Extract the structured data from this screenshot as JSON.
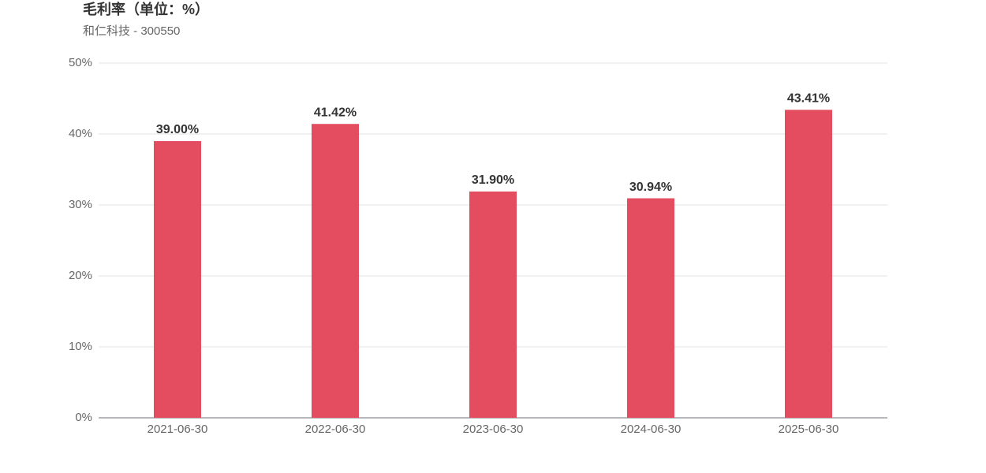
{
  "chart_data": {
    "type": "bar",
    "title": "毛利率（单位：%）",
    "subtitle": "和仁科技 - 300550",
    "categories": [
      "2021-06-30",
      "2022-06-30",
      "2023-06-30",
      "2024-06-30",
      "2025-06-30"
    ],
    "values": [
      39.0,
      41.42,
      31.9,
      30.94,
      43.41
    ],
    "value_labels": [
      "39.00%",
      "41.42%",
      "31.90%",
      "30.94%",
      "43.41%"
    ],
    "color": "#e44c5f",
    "ylim": [
      0,
      50
    ],
    "yticks": [
      {
        "value": 0,
        "label": "0%"
      },
      {
        "value": 10,
        "label": "10%"
      },
      {
        "value": 20,
        "label": "20%"
      },
      {
        "value": 30,
        "label": "30%"
      },
      {
        "value": 40,
        "label": "40%"
      },
      {
        "value": 50,
        "label": "50%"
      }
    ],
    "grid": true
  }
}
